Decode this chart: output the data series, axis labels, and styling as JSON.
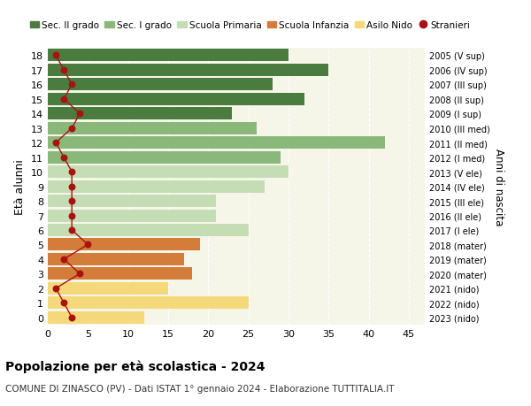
{
  "ages": [
    18,
    17,
    16,
    15,
    14,
    13,
    12,
    11,
    10,
    9,
    8,
    7,
    6,
    5,
    4,
    3,
    2,
    1,
    0
  ],
  "bar_values": [
    30,
    35,
    28,
    32,
    23,
    26,
    42,
    29,
    30,
    27,
    21,
    21,
    25,
    19,
    17,
    18,
    15,
    25,
    12
  ],
  "stranieri": [
    1,
    2,
    3,
    2,
    4,
    3,
    1,
    2,
    3,
    3,
    3,
    3,
    3,
    5,
    2,
    4,
    1,
    2,
    3
  ],
  "right_labels": [
    "2005 (V sup)",
    "2006 (IV sup)",
    "2007 (III sup)",
    "2008 (II sup)",
    "2009 (I sup)",
    "2010 (III med)",
    "2011 (II med)",
    "2012 (I med)",
    "2013 (V ele)",
    "2014 (IV ele)",
    "2015 (III ele)",
    "2016 (II ele)",
    "2017 (I ele)",
    "2018 (mater)",
    "2019 (mater)",
    "2020 (mater)",
    "2021 (nido)",
    "2022 (nido)",
    "2023 (nido)"
  ],
  "bar_colors": [
    "#4a7c3f",
    "#4a7c3f",
    "#4a7c3f",
    "#4a7c3f",
    "#4a7c3f",
    "#8ab87a",
    "#8ab87a",
    "#8ab87a",
    "#c5ddb5",
    "#c5ddb5",
    "#c5ddb5",
    "#c5ddb5",
    "#c5ddb5",
    "#d47c3a",
    "#d47c3a",
    "#d47c3a",
    "#f5d87a",
    "#f5d87a",
    "#f5d87a"
  ],
  "legend_labels": [
    "Sec. II grado",
    "Sec. I grado",
    "Scuola Primaria",
    "Scuola Infanzia",
    "Asilo Nido",
    "Stranieri"
  ],
  "legend_colors": [
    "#4a7c3f",
    "#8ab87a",
    "#c5ddb5",
    "#d47c3a",
    "#f5d87a",
    "#cc2222"
  ],
  "stranieri_color": "#aa1111",
  "ylabel": "Età alunni",
  "right_ylabel": "Anni di nascita",
  "title": "Popolazione per età scolastica - 2024",
  "subtitle": "COMUNE DI ZINASCO (PV) - Dati ISTAT 1° gennaio 2024 - Elaborazione TUTTITALIA.IT",
  "xlim": [
    0,
    47
  ],
  "ylim_min": -0.5,
  "ylim_max": 18.5,
  "background_color": "#ffffff",
  "plot_bg_color": "#f5f5e8",
  "grid_color": "#ffffff",
  "bar_height": 0.85
}
